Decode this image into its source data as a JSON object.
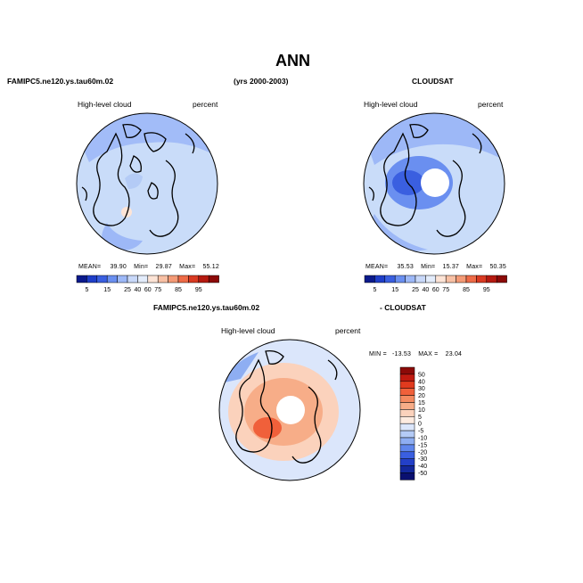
{
  "header": {
    "title": "ANN",
    "left_case": "FAMIPC5.ne120.ys.tau60m.02",
    "years": "(yrs 2000-2003)",
    "right_case": "CLOUDSAT",
    "diff_left": "FAMIPC5.ne120.ys.tau60m.02",
    "diff_right": "- CLOUDSAT"
  },
  "panel_left": {
    "variable": "High-level cloud",
    "units": "percent",
    "mean_label": "MEAN=",
    "mean": "39.90",
    "min_label": "Min=",
    "min": "29.87",
    "max_label": "Max=",
    "max": "55.12"
  },
  "panel_right": {
    "variable": "High-level cloud",
    "units": "percent",
    "mean_label": "MEAN=",
    "mean": "35.53",
    "min_label": "Min=",
    "min": "15.37",
    "max_label": "Max=",
    "max": "50.35"
  },
  "panel_diff": {
    "variable": "High-level cloud",
    "units": "percent",
    "min_label": "MIN =",
    "min": "-13.53",
    "max_label": "MAX =",
    "max": "23.04"
  },
  "colorbar_levels": [
    "5",
    "15",
    "25",
    "40",
    "60",
    "75",
    "85",
    "95"
  ],
  "colorbar_colors": [
    "#0b1a8c",
    "#1f3ec8",
    "#3a5fe0",
    "#6a8ff0",
    "#9db8f7",
    "#c8d8f9",
    "#e3ecfb",
    "#fde4d6",
    "#f8c0a4",
    "#f49a76",
    "#ee6b47",
    "#d93a22",
    "#b51a10",
    "#8c0a08"
  ],
  "diff_colorbar_levels": [
    "50",
    "40",
    "30",
    "20",
    "15",
    "10",
    "5",
    "0",
    "-5",
    "-10",
    "-15",
    "-20",
    "-30",
    "-40",
    "-50"
  ],
  "diff_colorbar_colors": [
    "#8c0a08",
    "#c01a10",
    "#e03a1e",
    "#f0603a",
    "#f48a60",
    "#f7ad88",
    "#fbd2bc",
    "#fdebe0",
    "#dbe6fb",
    "#b4cbf6",
    "#8eaef2",
    "#5f86ec",
    "#3a5fe0",
    "#2340c8",
    "#13289c",
    "#0a1070"
  ],
  "chart_data": [
    {
      "type": "heatmap",
      "title": "FAMIPC5.ne120.ys.tau60m.02",
      "subtitle": "High-level cloud",
      "units": "percent",
      "projection": "polar stereographic (north pole)",
      "levels": [
        5,
        15,
        25,
        40,
        60,
        75,
        85,
        95
      ],
      "mean": 39.9,
      "min": 29.87,
      "max": 55.12
    },
    {
      "type": "heatmap",
      "title": "CLOUDSAT",
      "subtitle": "High-level cloud",
      "units": "percent",
      "projection": "polar stereographic (north pole)",
      "levels": [
        5,
        15,
        25,
        40,
        60,
        75,
        85,
        95
      ],
      "mean": 35.53,
      "min": 15.37,
      "max": 50.35
    },
    {
      "type": "heatmap",
      "title": "FAMIPC5.ne120.ys.tau60m.02 - CLOUDSAT",
      "subtitle": "High-level cloud",
      "units": "percent",
      "projection": "polar stereographic (north pole)",
      "levels": [
        -50,
        -40,
        -30,
        -20,
        -15,
        -10,
        -5,
        0,
        5,
        10,
        15,
        20,
        30,
        40,
        50
      ],
      "min": -13.53,
      "max": 23.04
    }
  ]
}
